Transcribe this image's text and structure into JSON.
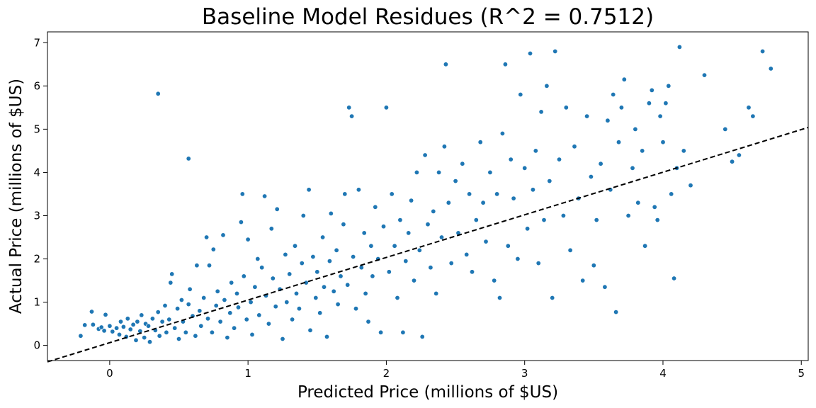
{
  "chart_data": {
    "type": "scatter",
    "title": "Baseline Model Residues (R^2 = 0.7512)",
    "xlabel": "Predicted Price (millions of $US)",
    "ylabel": "Actual Price (millions of $US)",
    "xlim": [
      -0.45,
      5.05
    ],
    "ylim": [
      -0.35,
      7.25
    ],
    "xticks": [
      0,
      1,
      2,
      3,
      4,
      5
    ],
    "yticks": [
      0,
      1,
      2,
      3,
      4,
      5,
      6,
      7
    ],
    "grid": false,
    "legend": "none",
    "point_color": "#1f77b4",
    "reference_line": {
      "style": "dashed",
      "color": "#000000",
      "x": [
        -0.45,
        5.05
      ],
      "y": [
        -0.38,
        5.04
      ]
    },
    "series": [
      {
        "values": [
          [
            -0.21,
            0.22
          ],
          [
            -0.18,
            0.47
          ],
          [
            -0.13,
            0.78
          ],
          [
            -0.12,
            0.48
          ],
          [
            -0.08,
            0.38
          ],
          [
            -0.06,
            0.42
          ],
          [
            -0.04,
            0.34
          ],
          [
            -0.03,
            0.71
          ],
          [
            0.0,
            0.45
          ],
          [
            0.02,
            0.32
          ],
          [
            0.05,
            0.4
          ],
          [
            0.07,
            0.25
          ],
          [
            0.08,
            0.55
          ],
          [
            0.1,
            0.43
          ],
          [
            0.12,
            0.2
          ],
          [
            0.13,
            0.62
          ],
          [
            0.15,
            0.37
          ],
          [
            0.17,
            0.48
          ],
          [
            0.19,
            0.12
          ],
          [
            0.2,
            0.55
          ],
          [
            0.22,
            0.33
          ],
          [
            0.23,
            0.7
          ],
          [
            0.25,
            0.18
          ],
          [
            0.26,
            0.5
          ],
          [
            0.28,
            0.45
          ],
          [
            0.29,
            0.08
          ],
          [
            0.31,
            0.62
          ],
          [
            0.33,
            0.35
          ],
          [
            0.35,
            0.77
          ],
          [
            0.36,
            0.22
          ],
          [
            0.38,
            0.55
          ],
          [
            0.4,
            0.92
          ],
          [
            0.41,
            0.3
          ],
          [
            0.43,
            0.6
          ],
          [
            0.44,
            1.45
          ],
          [
            0.45,
            1.65
          ],
          [
            0.47,
            0.4
          ],
          [
            0.49,
            0.85
          ],
          [
            0.5,
            0.15
          ],
          [
            0.52,
            1.05
          ],
          [
            0.53,
            0.55
          ],
          [
            0.55,
            0.3
          ],
          [
            0.57,
            0.95
          ],
          [
            0.58,
            1.3
          ],
          [
            0.6,
            0.68
          ],
          [
            0.62,
            0.22
          ],
          [
            0.63,
            1.85
          ],
          [
            0.65,
            0.8
          ],
          [
            0.66,
            0.45
          ],
          [
            0.68,
            1.1
          ],
          [
            0.7,
            2.5
          ],
          [
            0.71,
            0.62
          ],
          [
            0.72,
            1.85
          ],
          [
            0.74,
            0.3
          ],
          [
            0.75,
            2.22
          ],
          [
            0.77,
            0.92
          ],
          [
            0.78,
            1.25
          ],
          [
            0.8,
            0.55
          ],
          [
            0.82,
            2.55
          ],
          [
            0.83,
            1.05
          ],
          [
            0.85,
            0.18
          ],
          [
            0.87,
            0.75
          ],
          [
            0.88,
            1.45
          ],
          [
            0.9,
            0.4
          ],
          [
            0.92,
            1.2
          ],
          [
            0.93,
            0.88
          ],
          [
            0.95,
            2.85
          ],
          [
            0.96,
            3.5
          ],
          [
            0.97,
            1.6
          ],
          [
            0.99,
            0.6
          ],
          [
            1.0,
            2.45
          ],
          [
            1.02,
            1.0
          ],
          [
            1.03,
            0.25
          ],
          [
            1.05,
            1.35
          ],
          [
            1.07,
            2.0
          ],
          [
            1.08,
            0.7
          ],
          [
            1.1,
            1.8
          ],
          [
            1.12,
            3.45
          ],
          [
            1.13,
            1.15
          ],
          [
            1.15,
            0.5
          ],
          [
            1.17,
            2.7
          ],
          [
            1.18,
            1.55
          ],
          [
            1.2,
            0.9
          ],
          [
            1.21,
            3.15
          ],
          [
            1.23,
            1.3
          ],
          [
            1.25,
            0.15
          ],
          [
            1.27,
            2.1
          ],
          [
            1.28,
            1.0
          ],
          [
            1.3,
            1.65
          ],
          [
            1.32,
            0.6
          ],
          [
            1.34,
            2.3
          ],
          [
            1.35,
            1.2
          ],
          [
            1.37,
            0.85
          ],
          [
            1.39,
            1.9
          ],
          [
            1.4,
            3.0
          ],
          [
            1.42,
            1.45
          ],
          [
            1.44,
            3.6
          ],
          [
            1.45,
            0.35
          ],
          [
            1.47,
            2.05
          ],
          [
            1.49,
            1.1
          ],
          [
            1.5,
            1.7
          ],
          [
            1.52,
            0.75
          ],
          [
            1.54,
            2.5
          ],
          [
            1.55,
            1.35
          ],
          [
            1.57,
            0.2
          ],
          [
            1.59,
            1.95
          ],
          [
            1.6,
            3.05
          ],
          [
            1.62,
            1.25
          ],
          [
            1.64,
            2.2
          ],
          [
            1.65,
            0.95
          ],
          [
            1.67,
            1.6
          ],
          [
            1.69,
            2.8
          ],
          [
            1.7,
            3.5
          ],
          [
            1.72,
            1.4
          ],
          [
            1.73,
            5.5
          ],
          [
            1.75,
            5.3
          ],
          [
            1.76,
            2.05
          ],
          [
            1.78,
            0.85
          ],
          [
            1.8,
            3.6
          ],
          [
            1.82,
            1.8
          ],
          [
            1.84,
            2.6
          ],
          [
            1.85,
            1.2
          ],
          [
            1.87,
            0.55
          ],
          [
            1.89,
            2.3
          ],
          [
            1.9,
            1.6
          ],
          [
            1.92,
            3.2
          ],
          [
            1.94,
            2.0
          ],
          [
            1.96,
            0.3
          ],
          [
            1.98,
            2.75
          ],
          [
            2.0,
            5.5
          ],
          [
            2.02,
            1.7
          ],
          [
            2.04,
            3.5
          ],
          [
            2.06,
            2.3
          ],
          [
            2.08,
            1.1
          ],
          [
            2.1,
            2.9
          ],
          [
            2.12,
            0.3
          ],
          [
            2.14,
            1.95
          ],
          [
            2.16,
            2.6
          ],
          [
            2.18,
            3.35
          ],
          [
            2.2,
            1.5
          ],
          [
            2.22,
            4.0
          ],
          [
            2.24,
            2.2
          ],
          [
            2.26,
            0.2
          ],
          [
            2.28,
            4.4
          ],
          [
            2.3,
            2.8
          ],
          [
            2.32,
            1.8
          ],
          [
            2.34,
            3.1
          ],
          [
            2.36,
            1.2
          ],
          [
            2.38,
            4.0
          ],
          [
            2.4,
            2.5
          ],
          [
            2.42,
            4.6
          ],
          [
            2.43,
            6.5
          ],
          [
            2.45,
            3.3
          ],
          [
            2.47,
            1.9
          ],
          [
            2.5,
            3.8
          ],
          [
            2.52,
            2.6
          ],
          [
            2.55,
            4.2
          ],
          [
            2.58,
            2.1
          ],
          [
            2.6,
            3.5
          ],
          [
            2.62,
            1.7
          ],
          [
            2.65,
            2.9
          ],
          [
            2.68,
            4.7
          ],
          [
            2.7,
            3.3
          ],
          [
            2.72,
            2.4
          ],
          [
            2.75,
            4.0
          ],
          [
            2.78,
            1.5
          ],
          [
            2.8,
            3.5
          ],
          [
            2.82,
            1.1
          ],
          [
            2.84,
            4.9
          ],
          [
            2.86,
            6.5
          ],
          [
            2.88,
            2.3
          ],
          [
            2.9,
            4.3
          ],
          [
            2.92,
            3.4
          ],
          [
            2.95,
            2.0
          ],
          [
            2.97,
            5.8
          ],
          [
            3.0,
            4.1
          ],
          [
            3.02,
            2.7
          ],
          [
            3.04,
            6.75
          ],
          [
            3.06,
            3.6
          ],
          [
            3.08,
            4.5
          ],
          [
            3.1,
            1.9
          ],
          [
            3.12,
            5.4
          ],
          [
            3.14,
            2.9
          ],
          [
            3.16,
            6.0
          ],
          [
            3.18,
            3.8
          ],
          [
            3.2,
            1.1
          ],
          [
            3.22,
            6.8
          ],
          [
            3.25,
            4.3
          ],
          [
            3.28,
            3.0
          ],
          [
            3.3,
            5.5
          ],
          [
            3.33,
            2.2
          ],
          [
            3.36,
            4.6
          ],
          [
            3.39,
            3.4
          ],
          [
            3.42,
            1.5
          ],
          [
            3.45,
            5.3
          ],
          [
            3.48,
            3.9
          ],
          [
            3.5,
            1.85
          ],
          [
            3.52,
            2.9
          ],
          [
            3.55,
            4.2
          ],
          [
            3.58,
            1.35
          ],
          [
            3.6,
            5.2
          ],
          [
            3.62,
            3.6
          ],
          [
            3.64,
            5.8
          ],
          [
            3.66,
            0.77
          ],
          [
            3.68,
            4.7
          ],
          [
            3.7,
            5.5
          ],
          [
            3.72,
            6.15
          ],
          [
            3.75,
            3.0
          ],
          [
            3.78,
            4.1
          ],
          [
            3.8,
            5.0
          ],
          [
            3.82,
            3.3
          ],
          [
            3.85,
            4.5
          ],
          [
            3.87,
            2.3
          ],
          [
            3.9,
            5.6
          ],
          [
            3.92,
            5.9
          ],
          [
            3.94,
            3.2
          ],
          [
            3.96,
            2.9
          ],
          [
            3.98,
            5.3
          ],
          [
            4.0,
            4.7
          ],
          [
            4.02,
            5.6
          ],
          [
            4.04,
            6.0
          ],
          [
            4.06,
            3.5
          ],
          [
            4.08,
            1.55
          ],
          [
            4.1,
            4.1
          ],
          [
            4.12,
            6.9
          ],
          [
            4.15,
            4.5
          ],
          [
            4.2,
            3.7
          ],
          [
            4.3,
            6.25
          ],
          [
            4.45,
            5.0
          ],
          [
            4.5,
            4.25
          ],
          [
            4.55,
            4.4
          ],
          [
            4.62,
            5.5
          ],
          [
            4.65,
            5.3
          ],
          [
            4.72,
            6.8
          ],
          [
            4.78,
            6.4
          ],
          [
            0.35,
            5.82
          ],
          [
            0.57,
            4.32
          ]
        ]
      }
    ]
  }
}
